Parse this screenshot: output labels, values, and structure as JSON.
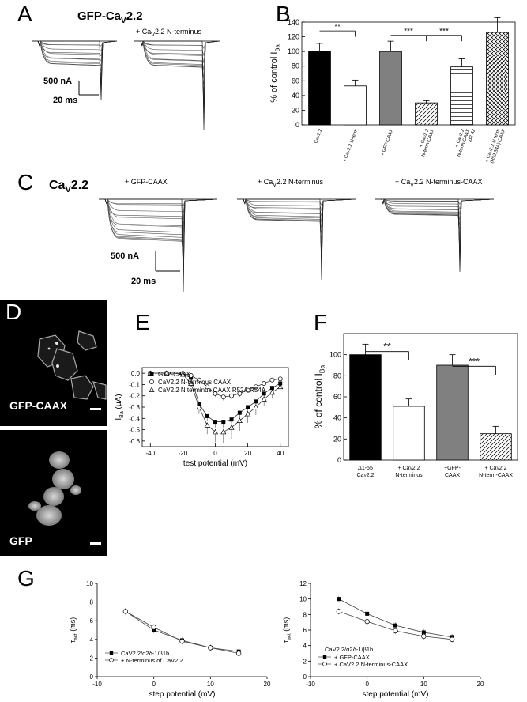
{
  "panels": {
    "A": {
      "letter": "A",
      "title_main": "GFP-Ca",
      "title_sub": "V",
      "title_end": "2.2",
      "condition_prefix": "+ Ca",
      "condition_sub": "V",
      "condition_end": "2.2 N-terminus",
      "scale_current": "500 nA",
      "scale_time": "20 ms"
    },
    "B": {
      "letter": "B",
      "ylabel": "% of control I",
      "ylabel_sub": "Ba",
      "yticks": [
        "0",
        "20",
        "40",
        "60",
        "80",
        "100",
        "120",
        "140"
      ],
      "sig": [
        "**",
        "***",
        "***"
      ],
      "chart_data": {
        "type": "bar",
        "categories": [
          "CaV2.2",
          "+ CaV2.2 N-term",
          "+ GFP-CAAX",
          "+ CaV2.2 N-term-CAAX",
          "+ CaV2.2 N-term-CAAX Δ2-42",
          "+ CaV2.2 N-term (R52,54A)-CAAX"
        ],
        "values": [
          100,
          53,
          100,
          30,
          79,
          126
        ],
        "errors": [
          11,
          8,
          14,
          3,
          11,
          20
        ],
        "ylim": [
          0,
          140
        ],
        "colors": [
          "#000000",
          "#ffffff",
          "#808080",
          "hatch-diag",
          "hatch-horiz",
          "hatch-cross"
        ]
      },
      "xlabels": [
        [
          "Ca",
          "V",
          "2.2"
        ],
        [
          "+ Ca",
          "V",
          "2.2 N-term"
        ],
        [
          "+ GFP-CAAX",
          "",
          ""
        ],
        [
          "+ Ca",
          "V",
          "2.2",
          "N-term-CAAX"
        ],
        [
          "+ Ca",
          "V",
          "2.2",
          "N-term-CAAX",
          "Δ2-42"
        ],
        [
          "+ Ca",
          "V",
          "2.2 N-term",
          "(R52,54A)-CAAX"
        ]
      ]
    },
    "C": {
      "letter": "C",
      "title_main": "Ca",
      "title_sub": "V",
      "title_end": "2.2",
      "conditions": [
        "+ GFP-CAAX",
        "+ CaV2.2 N-terminus",
        "+ CaV2.2 N-terminus-CAAX"
      ],
      "cond_parts": [
        {
          "pre": "+ GFP-CAAX",
          "sub": "",
          "end": ""
        },
        {
          "pre": "+ Ca",
          "sub": "V",
          "end": "2.2 N-terminus"
        },
        {
          "pre": "+ Ca",
          "sub": "V",
          "end": "2.2 N-terminus-CAAX"
        }
      ],
      "scale_current": "500 nA",
      "scale_time": "20 ms"
    },
    "D": {
      "letter": "D",
      "top_label": "GFP-CAAX",
      "bottom_label": "GFP"
    },
    "E": {
      "letter": "E",
      "legend": [
        "GFP-CAAX",
        "CaV2.2 N-terminus CAAX",
        "CaV2.2 N terminus CAAX R52A,R54A"
      ],
      "ylabel": "I",
      "ylabel_sub": "Ba",
      "ylabel_unit": " (μA)",
      "xlabel": "test potential (mV)",
      "xticks": [
        "-40",
        "-20",
        "0",
        "20",
        "40"
      ],
      "yticks": [
        "0.0",
        "-0.1",
        "-0.2",
        "-0.3",
        "-0.4",
        "-0.5",
        "-0.6"
      ],
      "chart_data": {
        "type": "scatter",
        "x": [
          -40,
          -35,
          -30,
          -25,
          -20,
          -15,
          -10,
          -5,
          0,
          5,
          10,
          15,
          20,
          25,
          30,
          35,
          40
        ],
        "series": [
          {
            "name": "GFP-CAAX",
            "marker": "filled-square",
            "values": [
              0,
              0,
              0,
              0,
              -0.01,
              -0.04,
              -0.27,
              -0.38,
              -0.43,
              -0.43,
              -0.41,
              -0.35,
              -0.3,
              -0.25,
              -0.18,
              -0.13,
              -0.09
            ],
            "errors": [
              0,
              0,
              0,
              0,
              0.01,
              0.02,
              0.03,
              0.04,
              0.05,
              0.06,
              0.06,
              0.05,
              0.05,
              0.04,
              0.03,
              0.03,
              0.02
            ]
          },
          {
            "name": "CaV2.2 N-terminus CAAX",
            "marker": "open-circle",
            "values": [
              0,
              0,
              0,
              0,
              0,
              -0.02,
              -0.06,
              -0.12,
              -0.18,
              -0.21,
              -0.2,
              -0.18,
              -0.15,
              -0.12,
              -0.09,
              -0.06,
              -0.05
            ],
            "errors": [
              0,
              0,
              0,
              0,
              0,
              0.01,
              0.02,
              0.02,
              0.03,
              0.03,
              0.03,
              0.03,
              0.02,
              0.02,
              0.02,
              0.01,
              0.01
            ]
          },
          {
            "name": "CaV2.2 N terminus CAAX R52A,R54A",
            "marker": "open-triangle",
            "values": [
              0,
              0,
              0,
              0,
              -0.01,
              -0.09,
              -0.3,
              -0.46,
              -0.52,
              -0.52,
              -0.48,
              -0.42,
              -0.36,
              -0.3,
              -0.23,
              -0.17,
              -0.12
            ],
            "errors": [
              0,
              0,
              0,
              0,
              0.01,
              0.03,
              0.06,
              0.08,
              0.09,
              0.1,
              0.1,
              0.09,
              0.08,
              0.07,
              0.06,
              0.05,
              0.04
            ]
          }
        ],
        "xlim": [
          -45,
          45
        ],
        "ylim": [
          -0.65,
          0.05
        ]
      }
    },
    "F": {
      "letter": "F",
      "ylabel": "% of control I",
      "ylabel_sub": "Ba",
      "yticks": [
        "0",
        "20",
        "40",
        "60",
        "80",
        "100"
      ],
      "sig": [
        "**",
        "***"
      ],
      "chart_data": {
        "type": "bar",
        "categories": [
          "Δ1-55 CaV2.2",
          "+ CaV2.2 N-terminus",
          "+GFP-CAAX",
          "+ CaV2.2 N-term-CAAX"
        ],
        "values": [
          100,
          51,
          90,
          25
        ],
        "errors": [
          10,
          7,
          10,
          7
        ],
        "ylim": [
          0,
          120
        ],
        "colors": [
          "#000000",
          "#ffffff",
          "#808080",
          "hatch-diag"
        ]
      },
      "xlabels": [
        [
          "Δ1-55",
          "Ca",
          "V",
          "2.2"
        ],
        [
          "+ Ca",
          "V",
          "2.2",
          "N-terminus"
        ],
        [
          "+GFP-",
          "CAAX",
          "",
          ""
        ],
        [
          "+ Ca",
          "V",
          "2.2",
          "N-term-CAAX"
        ]
      ]
    },
    "G": {
      "letter": "G",
      "ylabel": "τ",
      "ylabel_sub": "act",
      "ylabel_unit": " (ms)",
      "xlabel": "step potential (mV)",
      "xticks": [
        "-10",
        "0",
        "10",
        "20"
      ],
      "left": {
        "yticks": [
          "0",
          "2",
          "4",
          "6",
          "8",
          "10"
        ],
        "legend_title": "",
        "legend": [
          "CaV2.2/α2δ-1/β1b",
          "+ N-terminus of CaV2.2"
        ],
        "chart_data": {
          "type": "line",
          "x": [
            -5,
            0,
            5,
            10,
            15
          ],
          "series": [
            {
              "name": "CaV2.2/α2δ-1/β1b",
              "marker": "filled-square",
              "values": [
                7.0,
                5.0,
                3.9,
                3.1,
                2.7
              ]
            },
            {
              "name": "+ N-terminus of CaV2.2",
              "marker": "open-circle",
              "values": [
                7.0,
                5.3,
                3.8,
                3.1,
                2.5
              ]
            }
          ],
          "xlim": [
            -10,
            20
          ],
          "ylim": [
            0,
            10
          ]
        }
      },
      "right": {
        "yticks": [
          "0",
          "2",
          "4",
          "6",
          "8",
          "10",
          "12"
        ],
        "legend_title": "CaV2.2/α2δ-1/β1b",
        "legend": [
          "+ GFP-CAAX",
          "+ CaV2.2 N-terminus-CAAX"
        ],
        "chart_data": {
          "type": "line",
          "x": [
            -5,
            0,
            5,
            10,
            15
          ],
          "series": [
            {
              "name": "+ GFP-CAAX",
              "marker": "filled-square",
              "values": [
                10.0,
                8.1,
                6.6,
                5.7,
                5.1
              ]
            },
            {
              "name": "+ CaV2.2 N-terminus-CAAX",
              "marker": "open-circle",
              "values": [
                8.4,
                7.1,
                5.9,
                5.2,
                4.8
              ]
            }
          ],
          "xlim": [
            -10,
            20
          ],
          "ylim": [
            0,
            12
          ]
        }
      }
    }
  }
}
